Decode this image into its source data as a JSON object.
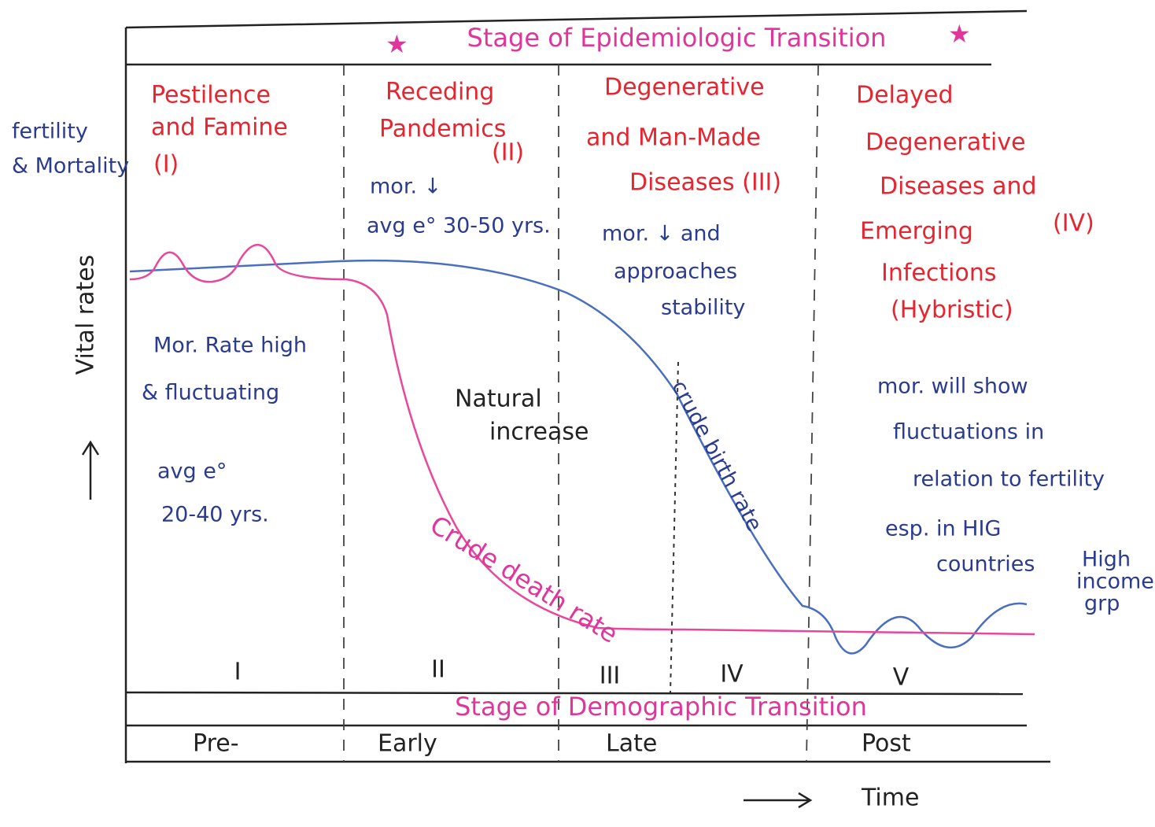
{
  "title": "Stage of Epidemiologic Transition",
  "side_label": [
    "fertility",
    "& Mortality"
  ],
  "y_axis_label": "Vital rates",
  "epidemiologic_stages": [
    {
      "lines": [
        "Pestilence",
        "and Famine",
        "(I)"
      ]
    },
    {
      "lines": [
        "Receding",
        "Pandemics",
        "(II)"
      ]
    },
    {
      "lines": [
        "Degenerative",
        "and Man-Made",
        "Diseases (III)"
      ]
    },
    {
      "lines": [
        "Delayed",
        "Degenerative",
        "Diseases and",
        "Emerging",
        "Infections",
        "(Hybristic)"
      ],
      "numeral": "(IV)"
    }
  ],
  "notes": {
    "stage_1": [
      "Mor. Rate high",
      "& fluctuating",
      "avg e°",
      "20-40 yrs."
    ],
    "stage_2": [
      "mor. ↓",
      "avg e° 30-50 yrs."
    ],
    "natural_increase": [
      "Natural",
      "increase"
    ],
    "stage_3": [
      "mor. ↓ and",
      "approaches",
      "stability"
    ],
    "stage_4": [
      "mor. will show",
      "fluctuations in",
      "relation to fertility",
      "esp. in HIG",
      "countries"
    ],
    "hig": [
      "High",
      "income",
      "grp"
    ]
  },
  "curve_labels": {
    "birth": "crude birth rate",
    "death": "Crude death rate"
  },
  "demographic_stage_numerals": [
    "I",
    "II",
    "III",
    "IV",
    "V"
  ],
  "demographic_title": "Stage of Demographic Transition",
  "demographic_phases": [
    "Pre-",
    "Early",
    "Late",
    "Post"
  ],
  "x_axis_label": "Time"
}
